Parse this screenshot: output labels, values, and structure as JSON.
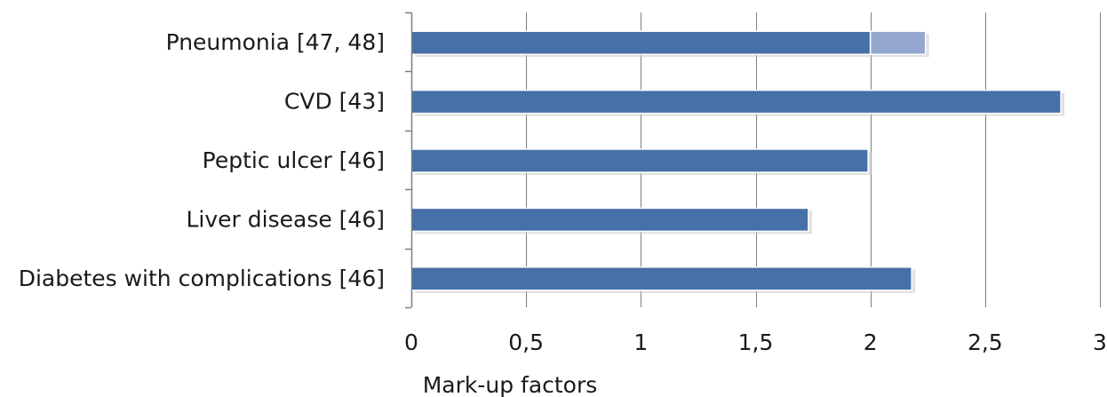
{
  "chart_data": {
    "type": "bar",
    "orientation": "horizontal",
    "stacked": true,
    "categories": [
      "Pneumonia [47, 48]",
      "CVD [43]",
      "Peptic ulcer [46]",
      "Liver disease [46]",
      "Diabetes with complications [46]"
    ],
    "series": [
      {
        "values": [
          2.0,
          2.83,
          1.99,
          1.73,
          2.18
        ],
        "color": "#4670a8"
      },
      {
        "values": [
          0.24,
          0,
          0,
          0,
          0
        ],
        "color": "#94a8cf"
      }
    ],
    "xlabel": "Mark-up factors",
    "ylabel": "",
    "xlim": [
      0,
      3
    ],
    "xticks": [
      0,
      0.5,
      1,
      1.5,
      2,
      2.5,
      3
    ],
    "xtick_labels": [
      "0",
      "0,5",
      "1",
      "1,5",
      "2",
      "2,5",
      "3"
    ],
    "grid": "vertical",
    "legend": "none",
    "colors": {
      "gridline": "#7f7f7f",
      "axis": "#7f7f7f"
    }
  }
}
